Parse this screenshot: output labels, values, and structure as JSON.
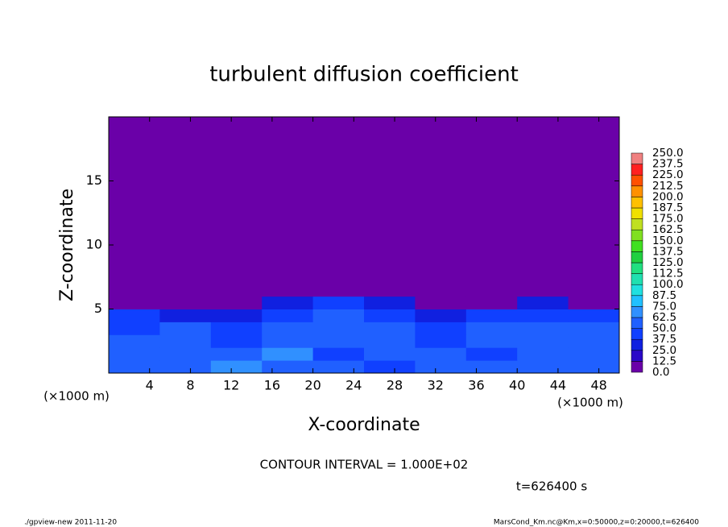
{
  "chart_data": {
    "type": "heatmap",
    "title": "turbulent diffusion coefficient",
    "x_label": "X-coordinate",
    "y_label": "Z-coordinate",
    "x_unit": "(×1000 m)",
    "y_unit": "(×1000 m)",
    "xlim": [
      0,
      50
    ],
    "ylim": [
      0,
      20
    ],
    "xticks": [
      4,
      8,
      12,
      16,
      20,
      24,
      28,
      32,
      36,
      40,
      44,
      48
    ],
    "yticks": [
      5,
      10,
      15
    ],
    "x_edges": [
      0,
      5,
      10,
      15,
      20,
      25,
      30,
      35,
      40,
      45,
      50
    ],
    "z_edges": [
      0,
      1,
      2,
      3,
      4,
      5,
      6,
      20
    ],
    "z": [
      [
        62,
        55,
        70,
        60,
        50,
        45,
        55,
        50,
        60,
        55
      ],
      [
        55,
        60,
        50,
        65,
        40,
        55,
        50,
        45,
        60,
        50
      ],
      [
        50,
        55,
        45,
        60,
        55,
        60,
        45,
        55,
        50,
        50
      ],
      [
        45,
        50,
        40,
        55,
        60,
        55,
        40,
        50,
        55,
        50
      ],
      [
        40,
        35,
        30,
        45,
        55,
        45,
        35,
        40,
        45,
        40
      ],
      [
        5,
        5,
        5,
        35,
        40,
        25,
        5,
        5,
        25,
        10
      ],
      [
        0,
        0,
        0,
        0,
        0,
        0,
        0,
        0,
        0,
        0
      ]
    ],
    "colorbar": {
      "levels": [
        {
          "value": 0,
          "label": "0.0"
        },
        {
          "value": 12.5,
          "label": "12.5"
        },
        {
          "value": 25,
          "label": "25.0"
        },
        {
          "value": 37.5,
          "label": "37.5"
        },
        {
          "value": 50,
          "label": "50.0"
        },
        {
          "value": 62.5,
          "label": "62.5"
        },
        {
          "value": 75,
          "label": "75.0"
        },
        {
          "value": 87.5,
          "label": "87.5"
        },
        {
          "value": 100,
          "label": "100.0"
        },
        {
          "value": 112.5,
          "label": "112.5"
        },
        {
          "value": 125,
          "label": "125.0"
        },
        {
          "value": 137.5,
          "label": "137.5"
        },
        {
          "value": 150,
          "label": "150.0"
        },
        {
          "value": 162.5,
          "label": "162.5"
        },
        {
          "value": 175,
          "label": "175.0"
        },
        {
          "value": 187.5,
          "label": "187.5"
        },
        {
          "value": 200,
          "label": "200.0"
        },
        {
          "value": 212.5,
          "label": "212.5"
        },
        {
          "value": 225,
          "label": "225.0"
        },
        {
          "value": 237.5,
          "label": "237.5"
        },
        {
          "value": 250,
          "label": "250.0"
        }
      ],
      "colors": [
        "#6a00a8",
        "#2a08c8",
        "#1020e0",
        "#1040ff",
        "#2060ff",
        "#3090ff",
        "#20c0ff",
        "#20e0e0",
        "#20e0b0",
        "#20e080",
        "#20d040",
        "#40e020",
        "#80e020",
        "#c0e020",
        "#f0e000",
        "#ffc000",
        "#ff9000",
        "#ff5000",
        "#ff2020",
        "#f08080"
      ]
    },
    "contour_note": "CONTOUR INTERVAL = 1.000E+02",
    "time_label": "t=626400 s",
    "footer_left": "./gpview-new  2011-11-20",
    "footer_right": "MarsCond_Km.nc@Km,x=0:50000,z=0:20000,t=626400"
  }
}
